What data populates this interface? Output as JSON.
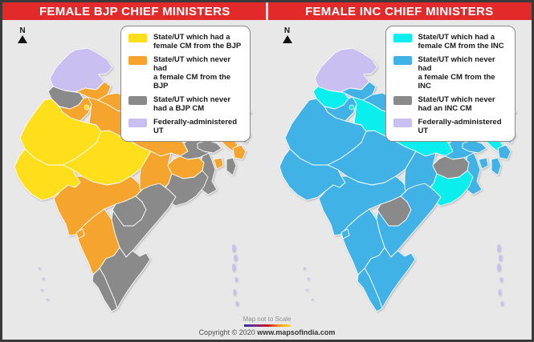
{
  "colors": {
    "canvas_background": "#e9e8e8",
    "header_red": "#e32a2b",
    "header_text": "#ffffff",
    "state_border": "#ffffff",
    "bjp_yellow": "#ffdf1c",
    "bjp_orange": "#f5a42e",
    "inc_cyan": "#0aefee",
    "inc_blue": "#41b2e6",
    "never_cm_gray": "#8a8a8a",
    "federal_ut_lavender": "#c9c0f1"
  },
  "panels": [
    {
      "id": "bjp",
      "title": "FEMALE BJP CHIEF MINISTERS",
      "north_label": "N",
      "category_colors": {
        "had_female_cm": "#ffdf1c",
        "no_female_cm": "#f5a42e",
        "never_cm": "#8a8a8a",
        "federal_ut": "#c9c0f1"
      },
      "legend": [
        {
          "category": "had_female_cm",
          "color": "#ffdf1c",
          "label": "State/UT which had a\nfemale CM from the BJP"
        },
        {
          "category": "no_female_cm",
          "color": "#f5a42e",
          "label": "State/UT which never had\na female CM from the BJP"
        },
        {
          "category": "never_cm",
          "color": "#8a8a8a",
          "label": "State/UT which never\nhad a BJP CM"
        },
        {
          "category": "federal_ut",
          "color": "#c9c0f1",
          "label": "Federally-administered UT"
        }
      ],
      "state_categories": {
        "jammu_kashmir": "federal_ut",
        "himachal_pradesh": "no_female_cm",
        "punjab": "never_cm",
        "uttarakhand": "no_female_cm",
        "haryana": "no_female_cm",
        "delhi": "had_female_cm",
        "rajasthan": "had_female_cm",
        "uttar_pradesh": "no_female_cm",
        "gujarat": "had_female_cm",
        "madhya_pradesh": "had_female_cm",
        "bihar": "never_cm",
        "sikkim": "never_cm",
        "west_bengal": "never_cm",
        "jharkhand": "no_female_cm",
        "chhattisgarh": "no_female_cm",
        "odisha": "never_cm",
        "maharashtra": "no_female_cm",
        "telangana": "never_cm",
        "andhra_pradesh": "never_cm",
        "karnataka": "no_female_cm",
        "goa": "no_female_cm",
        "kerala": "never_cm",
        "tamil_nadu": "never_cm",
        "assam": "no_female_cm",
        "arunachal_pradesh": "no_female_cm",
        "meghalaya": "never_cm",
        "nagaland": "never_cm",
        "manipur": "no_female_cm",
        "mizoram": "never_cm",
        "tripura": "no_female_cm",
        "andaman_nicobar": "federal_ut",
        "lakshadweep": "federal_ut"
      }
    },
    {
      "id": "inc",
      "title": "FEMALE INC CHIEF MINISTERS",
      "north_label": "N",
      "category_colors": {
        "had_female_cm": "#0aefee",
        "no_female_cm": "#41b2e6",
        "never_cm": "#8a8a8a",
        "federal_ut": "#c9c0f1"
      },
      "legend": [
        {
          "category": "had_female_cm",
          "color": "#0aefee",
          "label": "State/UT which had a\nfemale CM from the INC"
        },
        {
          "category": "no_female_cm",
          "color": "#41b2e6",
          "label": "State/UT which never had\na female CM from the INC"
        },
        {
          "category": "never_cm",
          "color": "#8a8a8a",
          "label": "State/UT which never\nhad an INC CM"
        },
        {
          "category": "federal_ut",
          "color": "#c9c0f1",
          "label": "Federally-administered UT"
        }
      ],
      "state_categories": {
        "jammu_kashmir": "federal_ut",
        "himachal_pradesh": "no_female_cm",
        "punjab": "had_female_cm",
        "uttarakhand": "no_female_cm",
        "haryana": "no_female_cm",
        "delhi": "had_female_cm",
        "rajasthan": "no_female_cm",
        "uttar_pradesh": "had_female_cm",
        "gujarat": "no_female_cm",
        "madhya_pradesh": "no_female_cm",
        "bihar": "no_female_cm",
        "sikkim": "no_female_cm",
        "west_bengal": "no_female_cm",
        "jharkhand": "never_cm",
        "chhattisgarh": "no_female_cm",
        "odisha": "had_female_cm",
        "maharashtra": "no_female_cm",
        "telangana": "never_cm",
        "andhra_pradesh": "no_female_cm",
        "karnataka": "no_female_cm",
        "goa": "no_female_cm",
        "kerala": "no_female_cm",
        "tamil_nadu": "no_female_cm",
        "assam": "had_female_cm",
        "arunachal_pradesh": "no_female_cm",
        "meghalaya": "no_female_cm",
        "nagaland": "no_female_cm",
        "manipur": "no_female_cm",
        "mizoram": "no_female_cm",
        "tripura": "no_female_cm",
        "andaman_nicobar": "federal_ut",
        "lakshadweep": "federal_ut"
      }
    }
  ],
  "footer": {
    "scale_note": "Map not to Scale",
    "copyright": "Copyright © 2020 ",
    "copyright_domain": "www.mapsofindia.com"
  }
}
